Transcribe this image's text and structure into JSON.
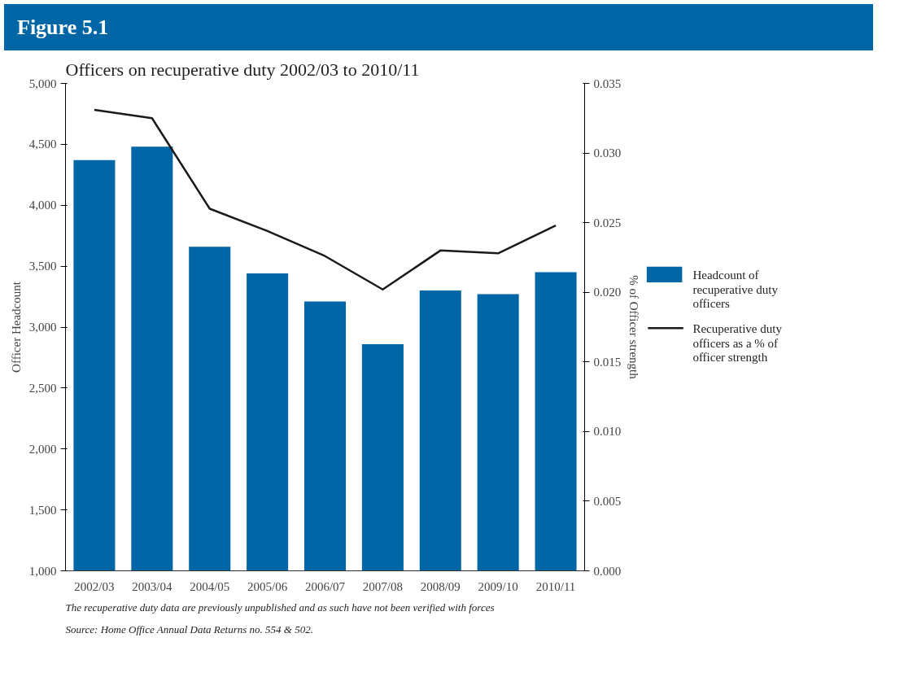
{
  "chart_data": {
    "type": "bar",
    "title": "Figure 5.1",
    "subtitle": "Officers on recuperative duty 2002/03 to 2010/11",
    "ylabel": "Officer Headcount",
    "y2label": "% of Officer strength",
    "categories": [
      "2002/03",
      "2003/04",
      "2004/05",
      "2005/06",
      "2006/07",
      "2007/08",
      "2008/09",
      "2009/10",
      "2010/11"
    ],
    "series": [
      {
        "name": "Headcount of recuperative duty officers",
        "color": "#0066a6",
        "values": [
          4370,
          4480,
          3660,
          3440,
          3210,
          2860,
          3300,
          3270,
          3450
        ]
      },
      {
        "name": "Recuperative duty officers as a % of officer strength",
        "type": "line",
        "axis": "y2",
        "color": "#1a1a1a",
        "values": [
          0.0331,
          0.0325,
          0.026,
          0.0244,
          0.0226,
          0.0202,
          0.023,
          0.0228,
          0.0248
        ]
      }
    ],
    "ylim": [
      1000,
      5000
    ],
    "yticks": [
      {
        "value": 1000,
        "label": "1,000"
      },
      {
        "value": 1500,
        "label": "1,500"
      },
      {
        "value": 2000,
        "label": "2,000"
      },
      {
        "value": 2500,
        "label": "2,500"
      },
      {
        "value": 3000,
        "label": "3,000"
      },
      {
        "value": 3500,
        "label": "3,500"
      },
      {
        "value": 4000,
        "label": "4,000"
      },
      {
        "value": 4500,
        "label": "4,500"
      },
      {
        "value": 5000,
        "label": "5,000"
      }
    ],
    "y2lim": [
      0,
      0.035
    ],
    "y2ticks": [
      {
        "value": 0,
        "label": "0.000"
      },
      {
        "value": 0.005,
        "label": "0.005"
      },
      {
        "value": 0.01,
        "label": "0.010"
      },
      {
        "value": 0.015,
        "label": "0.015"
      },
      {
        "value": 0.02,
        "label": "0.020"
      },
      {
        "value": 0.025,
        "label": "0.025"
      },
      {
        "value": 0.03,
        "label": "0.030"
      },
      {
        "value": 0.035,
        "label": "0.035"
      }
    ],
    "legend": "right",
    "grid": false,
    "annotations": [
      "Source: Home Office Annual Data Returns no. 554 & 502.",
      "The recuperative duty data are previously unpublished and as such have not been verified with forces"
    ]
  }
}
